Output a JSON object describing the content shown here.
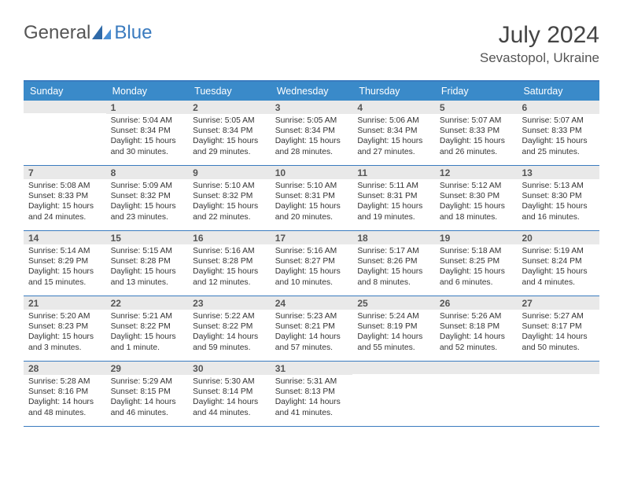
{
  "logo": {
    "text1": "General",
    "text2": "Blue"
  },
  "title": "July 2024",
  "location": "Sevastopol, Ukraine",
  "colors": {
    "header_bg": "#3a8ac9",
    "border": "#3a7bbf",
    "daynum_bg": "#e9e9e9",
    "text": "#333333",
    "daynum_text": "#555555"
  },
  "day_headers": [
    "Sunday",
    "Monday",
    "Tuesday",
    "Wednesday",
    "Thursday",
    "Friday",
    "Saturday"
  ],
  "weeks": [
    [
      {
        "n": "",
        "sr": "",
        "ss": "",
        "dl": ""
      },
      {
        "n": "1",
        "sr": "Sunrise: 5:04 AM",
        "ss": "Sunset: 8:34 PM",
        "dl": "Daylight: 15 hours and 30 minutes."
      },
      {
        "n": "2",
        "sr": "Sunrise: 5:05 AM",
        "ss": "Sunset: 8:34 PM",
        "dl": "Daylight: 15 hours and 29 minutes."
      },
      {
        "n": "3",
        "sr": "Sunrise: 5:05 AM",
        "ss": "Sunset: 8:34 PM",
        "dl": "Daylight: 15 hours and 28 minutes."
      },
      {
        "n": "4",
        "sr": "Sunrise: 5:06 AM",
        "ss": "Sunset: 8:34 PM",
        "dl": "Daylight: 15 hours and 27 minutes."
      },
      {
        "n": "5",
        "sr": "Sunrise: 5:07 AM",
        "ss": "Sunset: 8:33 PM",
        "dl": "Daylight: 15 hours and 26 minutes."
      },
      {
        "n": "6",
        "sr": "Sunrise: 5:07 AM",
        "ss": "Sunset: 8:33 PM",
        "dl": "Daylight: 15 hours and 25 minutes."
      }
    ],
    [
      {
        "n": "7",
        "sr": "Sunrise: 5:08 AM",
        "ss": "Sunset: 8:33 PM",
        "dl": "Daylight: 15 hours and 24 minutes."
      },
      {
        "n": "8",
        "sr": "Sunrise: 5:09 AM",
        "ss": "Sunset: 8:32 PM",
        "dl": "Daylight: 15 hours and 23 minutes."
      },
      {
        "n": "9",
        "sr": "Sunrise: 5:10 AM",
        "ss": "Sunset: 8:32 PM",
        "dl": "Daylight: 15 hours and 22 minutes."
      },
      {
        "n": "10",
        "sr": "Sunrise: 5:10 AM",
        "ss": "Sunset: 8:31 PM",
        "dl": "Daylight: 15 hours and 20 minutes."
      },
      {
        "n": "11",
        "sr": "Sunrise: 5:11 AM",
        "ss": "Sunset: 8:31 PM",
        "dl": "Daylight: 15 hours and 19 minutes."
      },
      {
        "n": "12",
        "sr": "Sunrise: 5:12 AM",
        "ss": "Sunset: 8:30 PM",
        "dl": "Daylight: 15 hours and 18 minutes."
      },
      {
        "n": "13",
        "sr": "Sunrise: 5:13 AM",
        "ss": "Sunset: 8:30 PM",
        "dl": "Daylight: 15 hours and 16 minutes."
      }
    ],
    [
      {
        "n": "14",
        "sr": "Sunrise: 5:14 AM",
        "ss": "Sunset: 8:29 PM",
        "dl": "Daylight: 15 hours and 15 minutes."
      },
      {
        "n": "15",
        "sr": "Sunrise: 5:15 AM",
        "ss": "Sunset: 8:28 PM",
        "dl": "Daylight: 15 hours and 13 minutes."
      },
      {
        "n": "16",
        "sr": "Sunrise: 5:16 AM",
        "ss": "Sunset: 8:28 PM",
        "dl": "Daylight: 15 hours and 12 minutes."
      },
      {
        "n": "17",
        "sr": "Sunrise: 5:16 AM",
        "ss": "Sunset: 8:27 PM",
        "dl": "Daylight: 15 hours and 10 minutes."
      },
      {
        "n": "18",
        "sr": "Sunrise: 5:17 AM",
        "ss": "Sunset: 8:26 PM",
        "dl": "Daylight: 15 hours and 8 minutes."
      },
      {
        "n": "19",
        "sr": "Sunrise: 5:18 AM",
        "ss": "Sunset: 8:25 PM",
        "dl": "Daylight: 15 hours and 6 minutes."
      },
      {
        "n": "20",
        "sr": "Sunrise: 5:19 AM",
        "ss": "Sunset: 8:24 PM",
        "dl": "Daylight: 15 hours and 4 minutes."
      }
    ],
    [
      {
        "n": "21",
        "sr": "Sunrise: 5:20 AM",
        "ss": "Sunset: 8:23 PM",
        "dl": "Daylight: 15 hours and 3 minutes."
      },
      {
        "n": "22",
        "sr": "Sunrise: 5:21 AM",
        "ss": "Sunset: 8:22 PM",
        "dl": "Daylight: 15 hours and 1 minute."
      },
      {
        "n": "23",
        "sr": "Sunrise: 5:22 AM",
        "ss": "Sunset: 8:22 PM",
        "dl": "Daylight: 14 hours and 59 minutes."
      },
      {
        "n": "24",
        "sr": "Sunrise: 5:23 AM",
        "ss": "Sunset: 8:21 PM",
        "dl": "Daylight: 14 hours and 57 minutes."
      },
      {
        "n": "25",
        "sr": "Sunrise: 5:24 AM",
        "ss": "Sunset: 8:19 PM",
        "dl": "Daylight: 14 hours and 55 minutes."
      },
      {
        "n": "26",
        "sr": "Sunrise: 5:26 AM",
        "ss": "Sunset: 8:18 PM",
        "dl": "Daylight: 14 hours and 52 minutes."
      },
      {
        "n": "27",
        "sr": "Sunrise: 5:27 AM",
        "ss": "Sunset: 8:17 PM",
        "dl": "Daylight: 14 hours and 50 minutes."
      }
    ],
    [
      {
        "n": "28",
        "sr": "Sunrise: 5:28 AM",
        "ss": "Sunset: 8:16 PM",
        "dl": "Daylight: 14 hours and 48 minutes."
      },
      {
        "n": "29",
        "sr": "Sunrise: 5:29 AM",
        "ss": "Sunset: 8:15 PM",
        "dl": "Daylight: 14 hours and 46 minutes."
      },
      {
        "n": "30",
        "sr": "Sunrise: 5:30 AM",
        "ss": "Sunset: 8:14 PM",
        "dl": "Daylight: 14 hours and 44 minutes."
      },
      {
        "n": "31",
        "sr": "Sunrise: 5:31 AM",
        "ss": "Sunset: 8:13 PM",
        "dl": "Daylight: 14 hours and 41 minutes."
      },
      {
        "n": "",
        "sr": "",
        "ss": "",
        "dl": ""
      },
      {
        "n": "",
        "sr": "",
        "ss": "",
        "dl": ""
      },
      {
        "n": "",
        "sr": "",
        "ss": "",
        "dl": ""
      }
    ]
  ]
}
